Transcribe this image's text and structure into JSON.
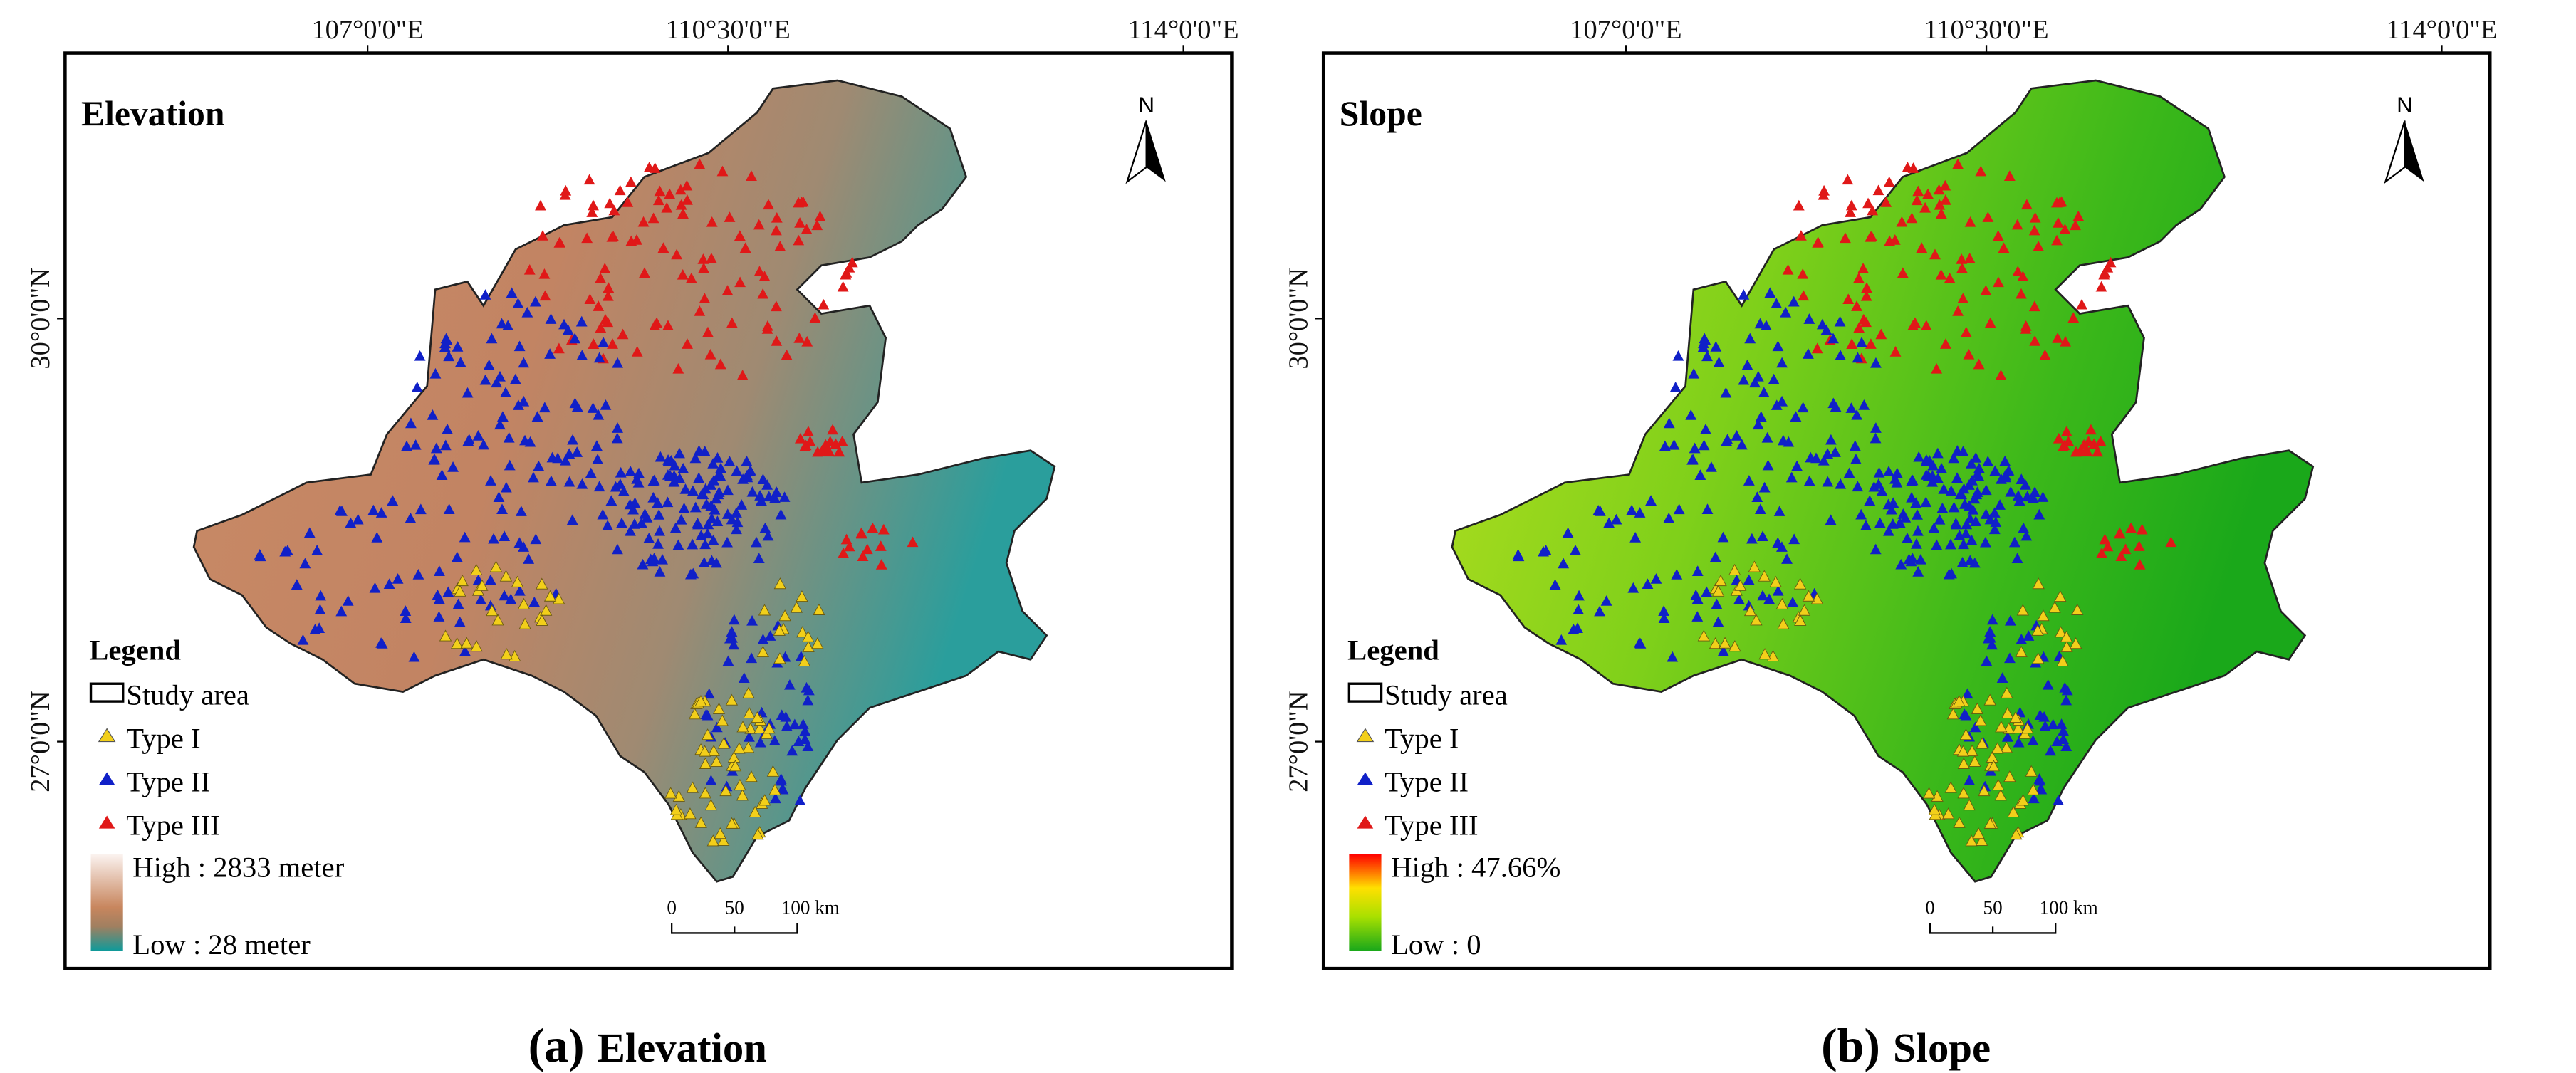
{
  "panels": [
    {
      "id": "a",
      "title": "Elevation",
      "caption_letter": "(a)",
      "caption_text": "Elevation",
      "lon_ticks": [
        "107°0'0\"E",
        "110°30'0\"E",
        "114°0'0\"E"
      ],
      "lat_ticks": [
        "30°0'0\"N",
        "27°0'0\"N"
      ],
      "north_label": "N",
      "legend": {
        "title": "Legend",
        "study_area": "Study area",
        "type1": "Type I",
        "type2": "Type II",
        "type3": "Type III",
        "high": "High : 2833 meter",
        "low": "Low : 28 meter"
      },
      "ramp_colors": [
        "#fbf3f0",
        "#c8865e",
        "#a07f60",
        "#0f9a9a"
      ],
      "scale": {
        "t0": "0",
        "t1": "50",
        "t2": "100 km"
      }
    },
    {
      "id": "b",
      "title": "Slope",
      "caption_letter": "(b)",
      "caption_text": "Slope",
      "lon_ticks": [
        "107°0'0\"E",
        "110°30'0\"E",
        "114°0'0\"E"
      ],
      "lat_ticks": [
        "30°0'0\"N",
        "27°0'0\"N"
      ],
      "north_label": "N",
      "legend": {
        "title": "Legend",
        "study_area": "Study area",
        "type1": "Type I",
        "type2": "Type II",
        "type3": "Type III",
        "high": "High : 47.66%",
        "low": "Low : 0"
      },
      "ramp_colors": [
        "#ff0000",
        "#ffe000",
        "#a8e000",
        "#1aa81a"
      ],
      "scale": {
        "t0": "0",
        "t1": "50",
        "t2": "100 km"
      }
    }
  ],
  "point_colors": {
    "type1": "#f2cf1a",
    "type2": "#1020c8",
    "type3": "#e01818"
  }
}
